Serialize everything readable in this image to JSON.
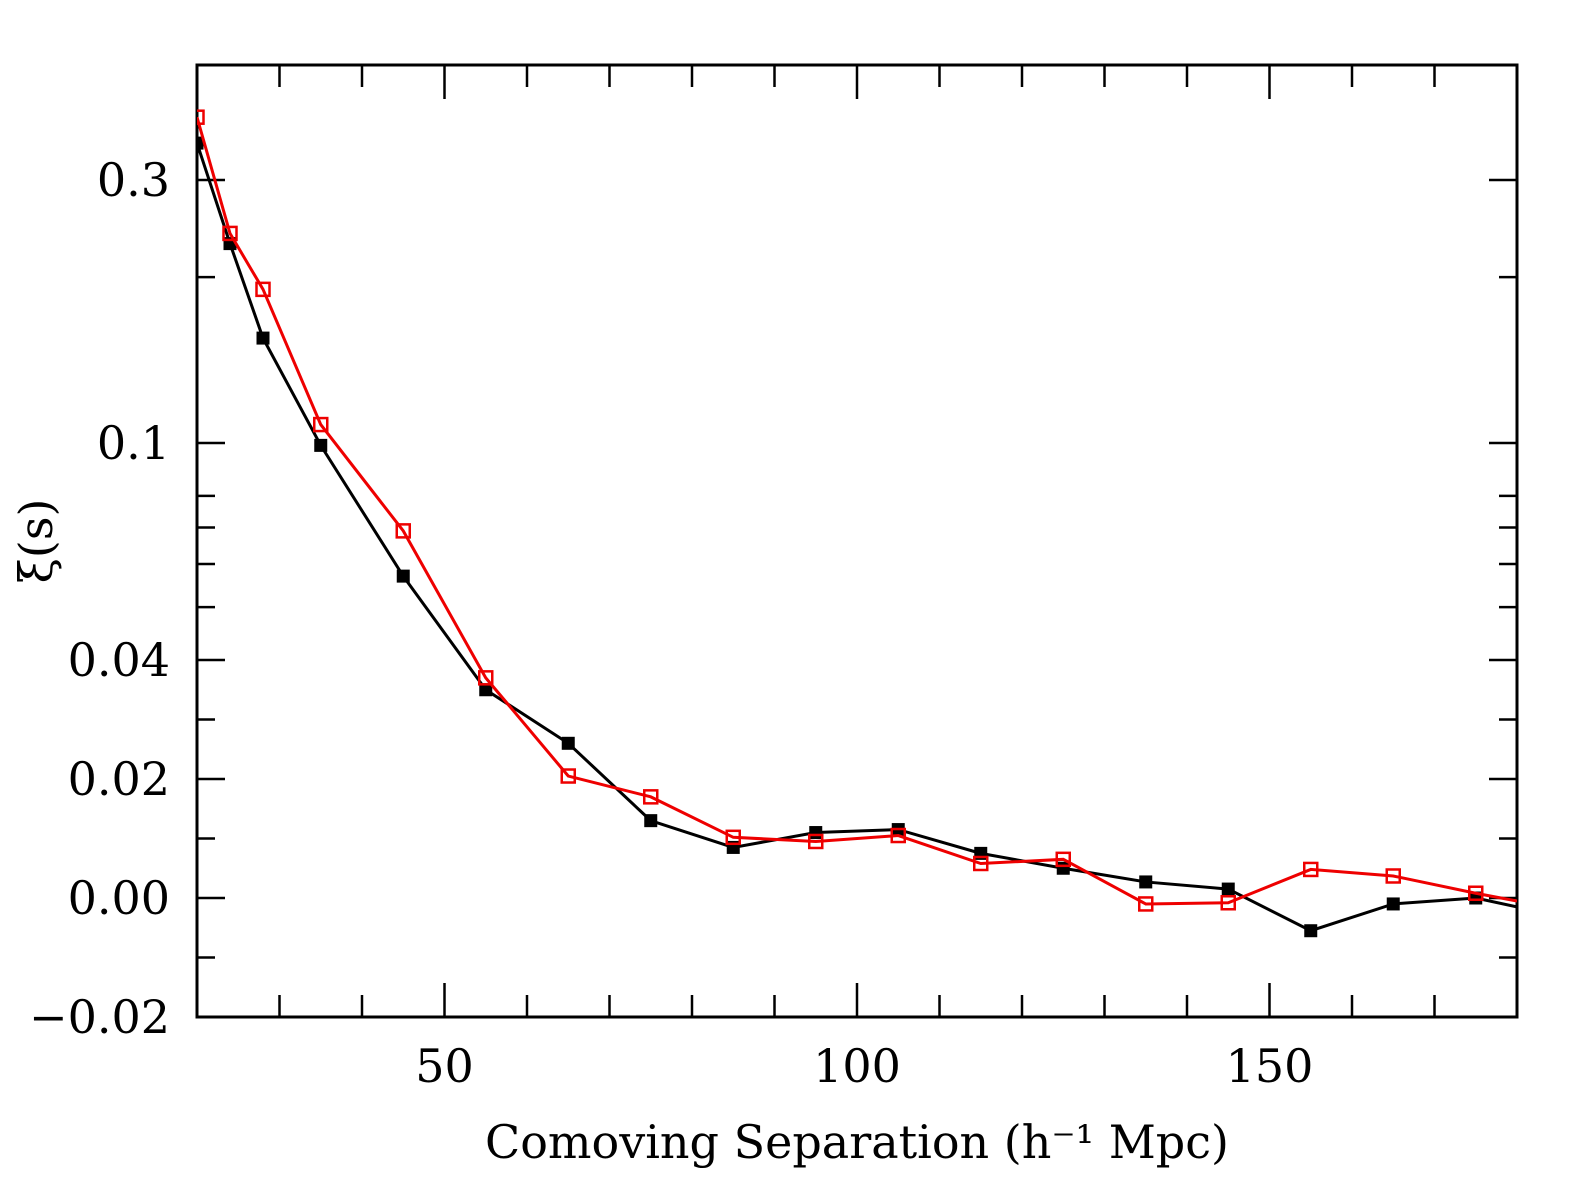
{
  "chart_data": {
    "type": "line",
    "xlabel": "Comoving Separation (h⁻¹ Mpc)",
    "ylabel": "ξ(s)",
    "xlim": [
      20,
      180
    ],
    "y_scale": "symmetric-log (linear near zero, log above ~0.04)",
    "y_ticks": [
      {
        "value": -0.02,
        "label": "−0.02"
      },
      {
        "value": 0.0,
        "label": "0.00"
      },
      {
        "value": 0.02,
        "label": "0.02"
      },
      {
        "value": 0.04,
        "label": "0.04"
      },
      {
        "value": 0.1,
        "label": "0.1"
      },
      {
        "value": 0.3,
        "label": "0.3"
      }
    ],
    "x_ticks": [
      {
        "value": 50,
        "label": "50"
      },
      {
        "value": 100,
        "label": "100"
      },
      {
        "value": 150,
        "label": "150"
      }
    ],
    "series": [
      {
        "name": "filled squares",
        "color": "#000000",
        "marker": "filled-square",
        "x": [
          20,
          24,
          28,
          35,
          45,
          55,
          65,
          75,
          85,
          95,
          105,
          115,
          125,
          135,
          145,
          155,
          165,
          175,
          180
        ],
        "y": [
          0.35,
          0.23,
          0.155,
          0.099,
          0.057,
          0.035,
          0.026,
          0.013,
          0.0085,
          0.011,
          0.0115,
          0.0075,
          0.005,
          0.0027,
          0.0015,
          -0.0055,
          -0.001,
          0.0,
          -0.0015
        ]
      },
      {
        "name": "open squares",
        "color": "#ee0000",
        "marker": "open-square",
        "x": [
          20,
          24,
          28,
          35,
          45,
          55,
          65,
          75,
          85,
          95,
          105,
          115,
          125,
          135,
          145,
          155,
          165,
          175,
          180
        ],
        "y": [
          0.39,
          0.24,
          0.19,
          0.108,
          0.069,
          0.037,
          0.0205,
          0.017,
          0.0102,
          0.0095,
          0.0105,
          0.0058,
          0.0065,
          -0.001,
          -0.0008,
          0.0048,
          0.0037,
          0.0008,
          -0.0005
        ]
      }
    ]
  }
}
